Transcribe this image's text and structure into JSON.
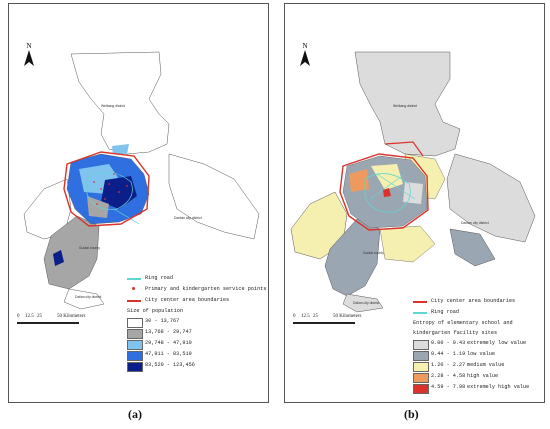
{
  "panels": [
    {
      "id": "a",
      "caption": "(a)",
      "north": "N",
      "scale": {
        "labels": [
          "0",
          "12.5",
          "25",
          "50 Kilometers"
        ]
      },
      "districts": [
        "Weibang district",
        "Dantan city district",
        "Guotai county",
        "Dalian city district"
      ],
      "legend": {
        "ring_road": "Ring road",
        "service_points": "Primary and kindergarten service points",
        "boundaries": "City center area boundaries",
        "title": "Size of population",
        "classes": [
          {
            "label": "30 - 13,767",
            "color": "#ffffff"
          },
          {
            "label": "13,768 - 29,747",
            "color": "#a6a6a6"
          },
          {
            "label": "29,748 - 47,910",
            "color": "#7fc3ee"
          },
          {
            "label": "47,911 - 83,519",
            "color": "#2f6fe0"
          },
          {
            "label": "83,520 - 123,456",
            "color": "#0b1f8a"
          }
        ]
      }
    },
    {
      "id": "b",
      "caption": "(b)",
      "north": "N",
      "scale": {
        "labels": [
          "0",
          "12.5",
          "25",
          "50 Kilometers"
        ]
      },
      "districts": [
        "Weibang district",
        "Dantan city district",
        "Guotai county",
        "Dalian city district"
      ],
      "legend": {
        "boundaries": "City center area boundaries",
        "ring_road": "Ring road",
        "title_line1": "Entropy of elementary school and",
        "title_line2": "kindergarten facility sites",
        "classes": [
          {
            "range": "0.00 - 0.43",
            "label": "extremely low value",
            "color": "#dcdcdc"
          },
          {
            "range": "0.44 - 1.19",
            "label": "low value",
            "color": "#9aa7b3"
          },
          {
            "range": "1.20 - 2.27",
            "label": "medium value",
            "color": "#f6f0b0"
          },
          {
            "range": "2.28 - 4.58",
            "label": "high value",
            "color": "#ee9a5e"
          },
          {
            "range": "4.59 - 7.98",
            "label": "extremely high value",
            "color": "#d9332b"
          }
        ]
      }
    }
  ],
  "colors": {
    "boundary": "#d9332b",
    "ring_road": "#5fd7cf",
    "outline": "#555555"
  }
}
